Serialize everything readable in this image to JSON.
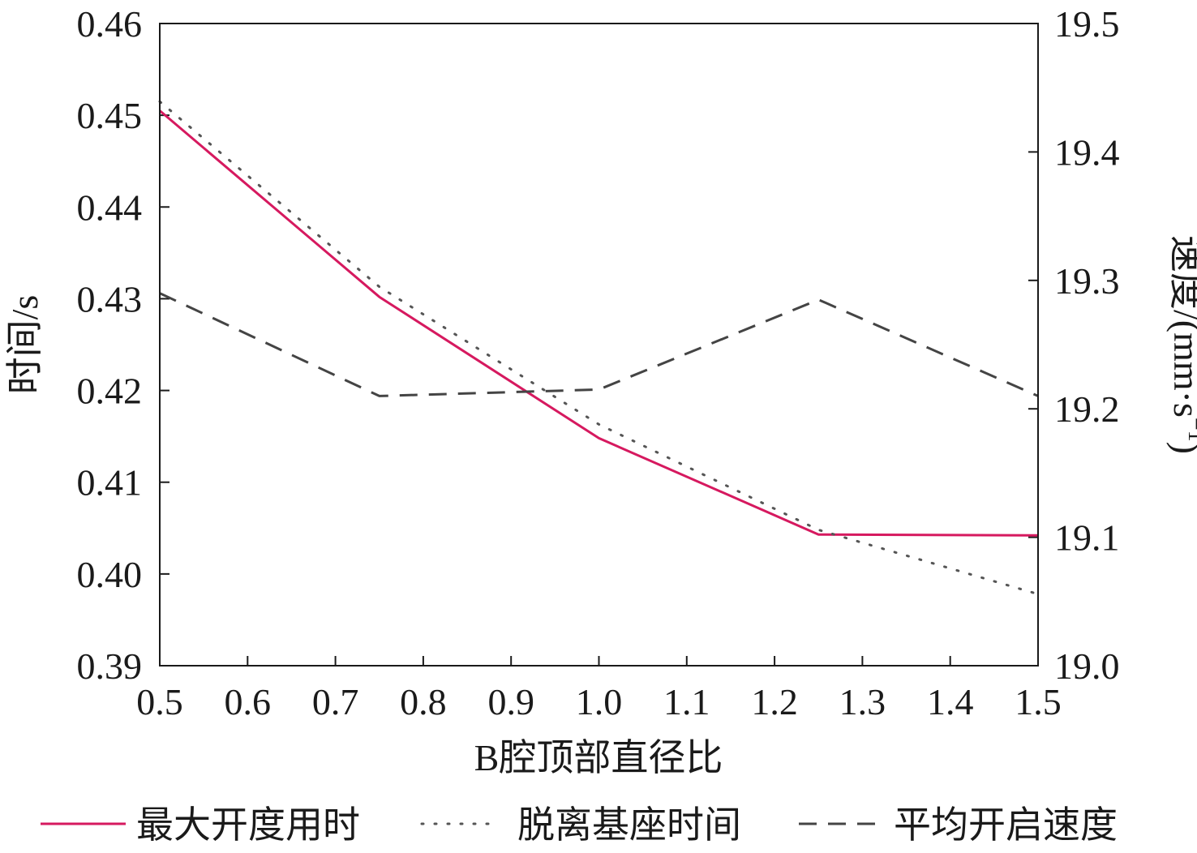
{
  "chart_data": {
    "type": "line",
    "title": "",
    "xlabel": "B腔顶部直径比",
    "ylabel_left": "时间/s",
    "ylabel_right_main": "速度/(mm·s",
    "ylabel_right_sup": "−1",
    "ylabel_right_close": ")",
    "xlim": [
      0.5,
      1.5
    ],
    "ylim_left": [
      0.39,
      0.46
    ],
    "ylim_right": [
      19.0,
      19.5
    ],
    "x_ticks": [
      "0.5",
      "0.6",
      "0.7",
      "0.8",
      "0.9",
      "1.0",
      "1.1",
      "1.2",
      "1.3",
      "1.4",
      "1.5"
    ],
    "y_left_ticks": [
      "0.39",
      "0.40",
      "0.41",
      "0.42",
      "0.43",
      "0.44",
      "0.45",
      "0.46"
    ],
    "y_right_ticks": [
      "19.0",
      "19.1",
      "19.2",
      "19.3",
      "19.4",
      "19.5"
    ],
    "grid": false,
    "legend_position": "bottom",
    "series": [
      {
        "name": "最大开度用时",
        "axis": "left",
        "style": "solid",
        "color": "#d6195f",
        "x": [
          0.5,
          0.75,
          1.0,
          1.25,
          1.5
        ],
        "y": [
          0.4505,
          0.4302,
          0.4148,
          0.4043,
          0.4042
        ]
      },
      {
        "name": "脱离基座时间",
        "axis": "left",
        "style": "dotted",
        "color": "#555555",
        "x": [
          0.5,
          0.75,
          1.0,
          1.25,
          1.5
        ],
        "y": [
          0.4515,
          0.4313,
          0.4163,
          0.4048,
          0.3978
        ]
      },
      {
        "name": "平均开启速度",
        "axis": "right",
        "style": "dashed",
        "color": "#444444",
        "x": [
          0.5,
          0.75,
          1.0,
          1.25,
          1.5
        ],
        "y": [
          19.29,
          19.21,
          19.215,
          19.285,
          19.21
        ]
      }
    ]
  }
}
